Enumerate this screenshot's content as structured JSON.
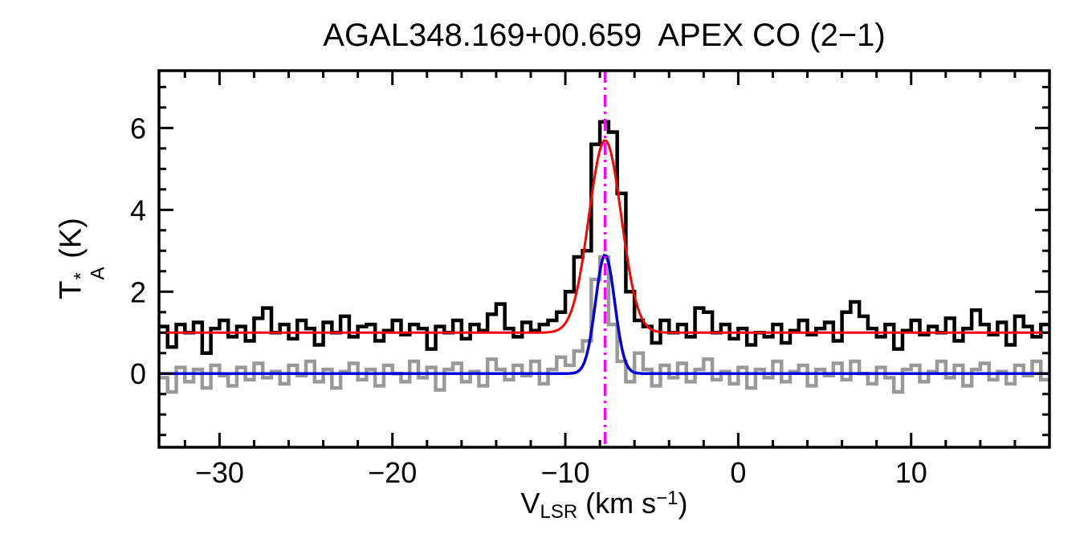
{
  "figure": {
    "background": "#ffffff"
  },
  "chart_data": {
    "type": "line",
    "title": "AGAL348.169+00.659  APEX CO (2−1)",
    "xlabel": {
      "base": "V",
      "sub": "LSR",
      "mid": " (km s",
      "sup": "−1",
      "end": ")"
    },
    "ylabel": {
      "base": "T",
      "sup": "*",
      "sub": "A",
      "unit": " (K)"
    },
    "xlim": [
      -33.5,
      18
    ],
    "ylim": [
      -1.8,
      7.4
    ],
    "grid": false,
    "legend": "none",
    "x_ticks": {
      "major": [
        -30,
        -20,
        -10,
        0,
        10
      ],
      "labels": [
        "−30",
        "−20",
        "−10",
        "0",
        "10"
      ],
      "minor_step": 2
    },
    "y_ticks": {
      "major": [
        0,
        2,
        4,
        6
      ],
      "labels": [
        "0",
        "2",
        "4",
        "6"
      ],
      "minor_step": 0.5
    },
    "series": [
      {
        "name": "observed-spectrum-black",
        "style": "histogram",
        "color": "#000000",
        "line_width": 4.5,
        "x_start": -33.25,
        "dx": 0.5,
        "values": [
          1.15,
          0.65,
          1.2,
          1.0,
          1.25,
          0.5,
          1.1,
          1.3,
          0.9,
          1.15,
          0.8,
          1.35,
          1.6,
          1.0,
          1.2,
          0.85,
          1.3,
          1.1,
          0.7,
          1.25,
          1.0,
          1.4,
          0.9,
          1.15,
          1.2,
          0.8,
          1.05,
          1.3,
          0.95,
          1.2,
          1.1,
          0.6,
          1.15,
          1.0,
          1.3,
          0.85,
          1.2,
          1.05,
          1.45,
          1.7,
          1.1,
          0.9,
          1.25,
          1.05,
          1.2,
          1.3,
          1.5,
          2.0,
          2.85,
          3.0,
          5.6,
          6.15,
          5.9,
          4.4,
          2.0,
          1.3,
          1.15,
          0.75,
          1.3,
          1.0,
          1.2,
          0.9,
          1.6,
          1.5,
          1.0,
          1.2,
          0.85,
          1.1,
          0.7,
          1.0,
          0.9,
          1.2,
          0.75,
          1.05,
          1.3,
          0.95,
          1.1,
          1.25,
          0.8,
          1.5,
          1.75,
          1.4,
          1.1,
          0.9,
          1.2,
          0.6,
          1.05,
          1.3,
          0.95,
          1.15,
          1.0,
          1.35,
          0.8,
          1.1,
          1.55,
          1.2,
          0.95,
          1.25,
          0.7,
          1.4,
          1.15,
          0.9,
          1.2
        ]
      },
      {
        "name": "second-spectrum-gray",
        "style": "histogram",
        "color": "#999999",
        "line_width": 4.5,
        "x_start": -33.25,
        "dx": 0.5,
        "values": [
          -0.1,
          -0.45,
          0.15,
          -0.2,
          0.1,
          -0.35,
          0.2,
          -0.05,
          -0.3,
          0.15,
          -0.15,
          0.25,
          -0.1,
          0.05,
          -0.25,
          0.2,
          -0.05,
          0.3,
          -0.2,
          0.1,
          -0.35,
          0.05,
          0.25,
          -0.15,
          0.1,
          -0.3,
          0.2,
          0.0,
          -0.2,
          0.3,
          -0.1,
          0.15,
          -0.4,
          0.1,
          0.25,
          -0.2,
          0.05,
          -0.3,
          0.35,
          0.1,
          -0.15,
          0.2,
          -0.05,
          0.3,
          -0.25,
          0.1,
          0.4,
          0.2,
          0.55,
          0.8,
          2.3,
          2.85,
          1.2,
          0.3,
          -0.2,
          0.5,
          0.1,
          -0.3,
          0.2,
          -0.1,
          0.25,
          -0.2,
          0.1,
          0.35,
          -0.15,
          0.05,
          -0.25,
          0.15,
          -0.35,
          0.1,
          -0.1,
          0.3,
          -0.2,
          0.05,
          0.2,
          -0.3,
          0.1,
          -0.05,
          0.25,
          -0.15,
          0.3,
          0.0,
          -0.25,
          0.15,
          -0.1,
          -0.45,
          0.1,
          0.2,
          -0.2,
          0.05,
          0.3,
          -0.1,
          0.2,
          -0.3,
          0.1,
          0.25,
          -0.15,
          0.05,
          -0.25,
          0.2,
          -0.05,
          0.3,
          -0.15
        ]
      }
    ],
    "fits": [
      {
        "name": "gaussian-fit-red",
        "color": "#ff0000",
        "line_width": 3,
        "baseline": 1.0,
        "amplitude": 4.7,
        "center": -7.7,
        "fwhm": 2.2
      },
      {
        "name": "gaussian-fit-blue",
        "color": "#0000dd",
        "line_width": 3.5,
        "baseline": 0.0,
        "amplitude": 2.9,
        "center": -7.7,
        "fwhm": 1.3
      }
    ],
    "vline": {
      "name": "vlsr-marker-line",
      "x": -7.7,
      "color": "#ff00ff",
      "style": "dash-dot",
      "line_width": 3.5
    }
  }
}
